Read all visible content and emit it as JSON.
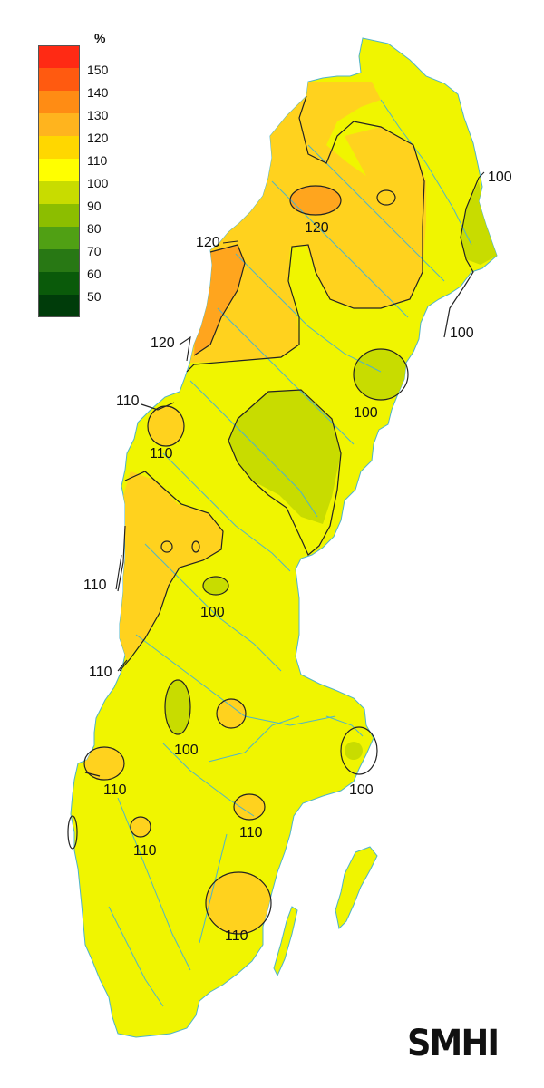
{
  "legend": {
    "unit": "%",
    "classes": [
      {
        "label": "150",
        "color": "#ff2a14"
      },
      {
        "label": "140",
        "color": "#ff5a10"
      },
      {
        "label": "130",
        "color": "#ff8c14"
      },
      {
        "label": "120",
        "color": "#ffb41e"
      },
      {
        "label": "110",
        "color": "#ffd700"
      },
      {
        "label": "100",
        "color": "#ffff00"
      },
      {
        "label": "90",
        "color": "#c8dc00"
      },
      {
        "label": "80",
        "color": "#8cbe00"
      },
      {
        "label": "70",
        "color": "#50a014"
      },
      {
        "label": "60",
        "color": "#287814"
      },
      {
        "label": "50",
        "color": "#0a5a0a"
      },
      {
        "label": "",
        "color": "#003c0a"
      }
    ]
  },
  "map": {
    "land_color": "#f0f500",
    "anomaly_above_110_color": "#ffd21e",
    "anomaly_above_120_color": "#ffa51e",
    "anomaly_below_100_color": "#c8dc00",
    "water_color": "#4fb4c8",
    "contour_color": "#222222",
    "isoline_labels": {
      "l01": "100",
      "l02": "120",
      "l03": "120",
      "l04": "100",
      "l05": "120",
      "l06": "100",
      "l07": "110",
      "l08": "110",
      "l09": "110",
      "l10": "100",
      "l11": "110",
      "l12": "100",
      "l13": "110",
      "l14": "100",
      "l15": "110",
      "l16": "110",
      "l17": "110"
    }
  },
  "logo": {
    "text": "SMHI"
  }
}
